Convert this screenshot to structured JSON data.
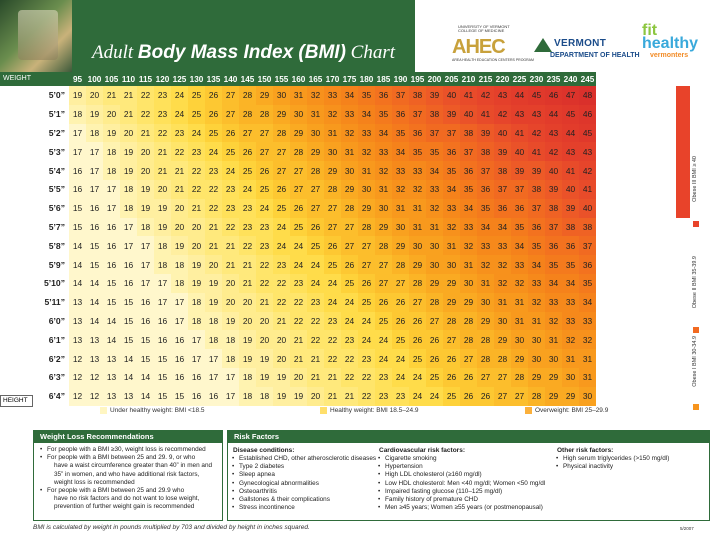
{
  "title_prefix": "Adult",
  "title_bold": "Body Mass Index (BMI)",
  "title_suffix": "Chart",
  "logos": {
    "ahec_univ": "UNIVERSITY OF VERMONT COLLEGE OF MEDICINE",
    "ahec": "AHEC",
    "ahec_sub": "AREA HEALTH EDUCATION CENTERS PROGRAM",
    "vt_state": "VERMONT",
    "vt_dept": "DEPARTMENT OF HEALTH",
    "fit1": "fit",
    "fit2": "healthy",
    "fit3": "vermonters"
  },
  "weight_label": "WEIGHT",
  "height_label": "HEIGHT",
  "weights": [
    95,
    100,
    105,
    110,
    115,
    120,
    125,
    130,
    135,
    140,
    145,
    150,
    155,
    160,
    165,
    170,
    175,
    180,
    185,
    190,
    195,
    200,
    205,
    210,
    215,
    220,
    225,
    230,
    235,
    240,
    245
  ],
  "rows": [
    {
      "h": "5’0”",
      "v": [
        19,
        20,
        21,
        21,
        22,
        23,
        24,
        25,
        26,
        27,
        28,
        29,
        30,
        31,
        32,
        33,
        34,
        35,
        36,
        37,
        38,
        39,
        40,
        41,
        42,
        43,
        44,
        45,
        46,
        47,
        48
      ]
    },
    {
      "h": "5’1”",
      "v": [
        18,
        19,
        20,
        21,
        22,
        23,
        24,
        25,
        26,
        27,
        28,
        28,
        29,
        30,
        31,
        32,
        33,
        34,
        35,
        36,
        37,
        38,
        39,
        40,
        41,
        42,
        43,
        43,
        44,
        45,
        46
      ]
    },
    {
      "h": "5’2”",
      "v": [
        17,
        18,
        19,
        20,
        21,
        22,
        23,
        24,
        25,
        26,
        27,
        27,
        28,
        29,
        30,
        31,
        32,
        33,
        34,
        35,
        36,
        37,
        37,
        38,
        39,
        40,
        41,
        42,
        43,
        44,
        45
      ]
    },
    {
      "h": "5’3”",
      "v": [
        17,
        17,
        18,
        19,
        20,
        21,
        22,
        23,
        24,
        25,
        26,
        27,
        27,
        28,
        29,
        30,
        31,
        32,
        33,
        34,
        35,
        35,
        36,
        37,
        38,
        39,
        40,
        41,
        42,
        43,
        43
      ]
    },
    {
      "h": "5’4”",
      "v": [
        16,
        17,
        18,
        19,
        20,
        21,
        21,
        22,
        23,
        24,
        25,
        26,
        27,
        27,
        28,
        29,
        30,
        31,
        32,
        33,
        33,
        34,
        35,
        36,
        37,
        38,
        39,
        39,
        40,
        41,
        42
      ]
    },
    {
      "h": "5’5”",
      "v": [
        16,
        17,
        17,
        18,
        19,
        20,
        21,
        22,
        22,
        23,
        24,
        25,
        26,
        27,
        27,
        28,
        29,
        30,
        31,
        32,
        32,
        33,
        34,
        35,
        36,
        37,
        37,
        38,
        39,
        40,
        41
      ]
    },
    {
      "h": "5’6”",
      "v": [
        15,
        16,
        17,
        18,
        19,
        19,
        20,
        21,
        22,
        23,
        23,
        24,
        25,
        26,
        27,
        27,
        28,
        29,
        30,
        31,
        31,
        32,
        33,
        34,
        35,
        36,
        36,
        37,
        38,
        39,
        40
      ]
    },
    {
      "h": "5’7”",
      "v": [
        15,
        16,
        16,
        17,
        18,
        19,
        20,
        20,
        21,
        22,
        23,
        23,
        24,
        25,
        26,
        27,
        27,
        28,
        29,
        30,
        31,
        31,
        32,
        33,
        34,
        34,
        35,
        36,
        37,
        38,
        38
      ]
    },
    {
      "h": "5’8”",
      "v": [
        14,
        15,
        16,
        17,
        17,
        18,
        19,
        20,
        21,
        21,
        22,
        23,
        24,
        24,
        25,
        26,
        27,
        27,
        28,
        29,
        30,
        30,
        31,
        32,
        33,
        33,
        34,
        35,
        36,
        36,
        37
      ]
    },
    {
      "h": "5’9”",
      "v": [
        14,
        15,
        16,
        16,
        17,
        18,
        18,
        19,
        20,
        21,
        21,
        22,
        23,
        24,
        24,
        25,
        26,
        27,
        27,
        28,
        29,
        30,
        30,
        31,
        32,
        32,
        33,
        34,
        35,
        35,
        36
      ]
    },
    {
      "h": "5’10”",
      "v": [
        14,
        14,
        15,
        16,
        17,
        17,
        18,
        19,
        19,
        20,
        21,
        22,
        22,
        23,
        24,
        24,
        25,
        26,
        27,
        27,
        28,
        29,
        29,
        30,
        31,
        32,
        32,
        33,
        34,
        34,
        35
      ]
    },
    {
      "h": "5’11”",
      "v": [
        13,
        14,
        15,
        15,
        16,
        17,
        17,
        18,
        19,
        20,
        20,
        21,
        22,
        22,
        23,
        24,
        24,
        25,
        26,
        26,
        27,
        28,
        29,
        29,
        30,
        31,
        31,
        32,
        33,
        33,
        34
      ]
    },
    {
      "h": "6’0”",
      "v": [
        13,
        14,
        14,
        15,
        16,
        16,
        17,
        18,
        18,
        19,
        20,
        20,
        21,
        22,
        22,
        23,
        24,
        24,
        25,
        26,
        26,
        27,
        28,
        28,
        29,
        30,
        31,
        31,
        32,
        33,
        33
      ]
    },
    {
      "h": "6’1”",
      "v": [
        13,
        13,
        14,
        15,
        15,
        16,
        16,
        17,
        18,
        18,
        19,
        20,
        20,
        21,
        22,
        22,
        23,
        24,
        24,
        25,
        26,
        26,
        27,
        28,
        28,
        29,
        30,
        30,
        31,
        32,
        32
      ]
    },
    {
      "h": "6’2”",
      "v": [
        12,
        13,
        13,
        14,
        15,
        15,
        16,
        17,
        17,
        18,
        19,
        19,
        20,
        21,
        21,
        22,
        22,
        23,
        24,
        24,
        25,
        26,
        26,
        27,
        28,
        28,
        29,
        30,
        30,
        31,
        31
      ]
    },
    {
      "h": "6’3”",
      "v": [
        12,
        12,
        13,
        14,
        14,
        15,
        16,
        16,
        17,
        17,
        18,
        19,
        19,
        20,
        21,
        21,
        22,
        22,
        23,
        24,
        24,
        25,
        26,
        26,
        27,
        27,
        28,
        29,
        29,
        30,
        31
      ]
    },
    {
      "h": "6’4”",
      "v": [
        12,
        12,
        13,
        13,
        14,
        15,
        15,
        16,
        16,
        17,
        18,
        18,
        19,
        19,
        20,
        21,
        21,
        22,
        23,
        23,
        24,
        24,
        25,
        26,
        26,
        27,
        27,
        28,
        29,
        29,
        30
      ]
    }
  ],
  "colors": {
    "under": "#fff6c2",
    "healthy": "#ffdf6b",
    "over": "#fbb03b",
    "obese1": "#f7941d",
    "obese2": "#f26a21",
    "obese3": "#e8432a",
    "green": "#2f6b3a"
  },
  "legend": {
    "under": "Under healthy weight: BMI <18.5",
    "healthy": "Healthy weight: BMI 18.5–24.9",
    "over": "Overweight: BMI 25–29.9"
  },
  "sidebar": {
    "obese3": "Obese III BMI ≥ 40",
    "obese2": "Obese II BMI 35-39.9",
    "obese1": "Obese I BMI 30-34.9"
  },
  "weight_loss": {
    "heading": "Weight Loss Recommendations",
    "items": [
      {
        "text": "For people with a BMI ≥30, weight loss is recommended",
        "cont": false
      },
      {
        "text": "For people with a BMI between 25 and 29. 9, or who",
        "cont": false
      },
      {
        "text": "have a waist circumference greater than 40” in men and",
        "cont": true
      },
      {
        "text": "35” in women, and who have additional risk factors,",
        "cont": true
      },
      {
        "text": "weight loss is recommended",
        "cont": true
      },
      {
        "text": "For people with a BMI between 25 and 29.9 who",
        "cont": false
      },
      {
        "text": "have no risk factors and do not want to lose weight,",
        "cont": true
      },
      {
        "text": "prevention of further weight gain is recommended",
        "cont": true
      }
    ]
  },
  "risk": {
    "heading": "Risk Factors",
    "disease_heading": "Disease conditions:",
    "disease": [
      "Established CHD, other atherosclerotic diseases",
      "Type 2 diabetes",
      "Sleep apnea",
      "Gynecological abnormalities",
      "Osteoarthritis",
      "Gallstones & their complications",
      "Stress incontinence"
    ],
    "cardio_heading": "Cardiovascular risk factors:",
    "cardio": [
      "Cigarette smoking",
      "Hypertension",
      "High LDL cholesterol (≥160 mg/dl)",
      "Low HDL cholesterol: Men <40 mg/dl; Women <50 mg/dl",
      "Impaired fasting glucose (110–125 mg/dl)",
      "Family history of premature CHD",
      "Men ≥45 years; Women ≥55 years (or postmenopausal)"
    ],
    "other_heading": "Other risk factors:",
    "other": [
      "High serum triglycerides (>150 mg/dl)",
      "Physical inactivity"
    ]
  },
  "footer": "BMI is calculated by weight in pounds multiplied by 703 and divided by height in inches squared.",
  "footer_date": "5/2007"
}
